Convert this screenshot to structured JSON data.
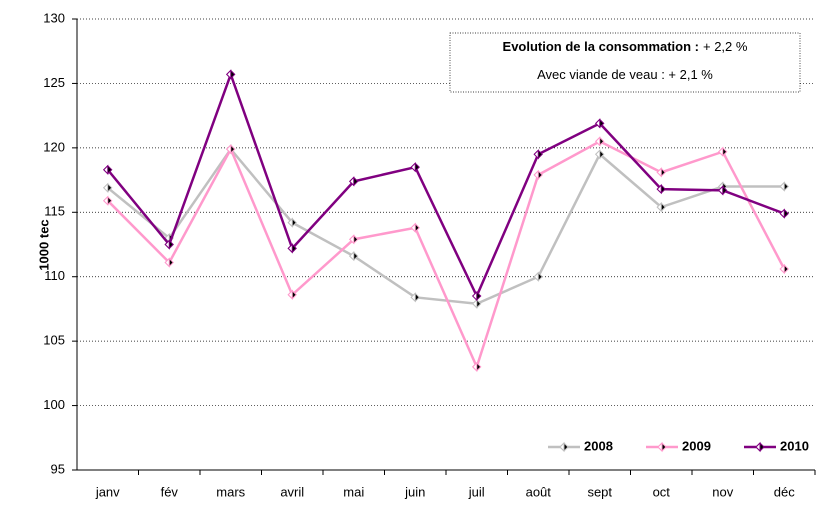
{
  "chart_data": {
    "type": "line",
    "y_label": "1000 tec",
    "categories": [
      "janv",
      "fév",
      "mars",
      "avril",
      "mai",
      "juin",
      "juil",
      "août",
      "sept",
      "oct",
      "nov",
      "déc"
    ],
    "series": [
      {
        "name": "2008",
        "color": "#c0c0c0",
        "values": [
          116.9,
          113,
          119.9,
          114.2,
          111.6,
          108.4,
          107.9,
          110,
          119.5,
          115.4,
          117,
          117
        ]
      },
      {
        "name": "2009",
        "color": "#ff99cc",
        "values": [
          115.9,
          111.1,
          119.9,
          108.6,
          112.9,
          113.8,
          103,
          117.9,
          120.5,
          118.1,
          119.7,
          110.6
        ]
      },
      {
        "name": "2010",
        "color": "#800080",
        "values": [
          118.3,
          112.5,
          125.7,
          112.2,
          117.4,
          118.5,
          108.5,
          119.5,
          121.9,
          116.8,
          116.7,
          114.9
        ]
      }
    ],
    "annotations": [
      [
        "Evolution de la consommation :",
        "+ 2,2 %"
      ],
      [
        "Avec viande de veau : + 2,1 %"
      ]
    ],
    "ylim": [
      95,
      130
    ],
    "yticks": [
      95,
      100,
      105,
      110,
      115,
      120,
      125,
      130
    ],
    "grid": true,
    "legend": "lower right"
  }
}
